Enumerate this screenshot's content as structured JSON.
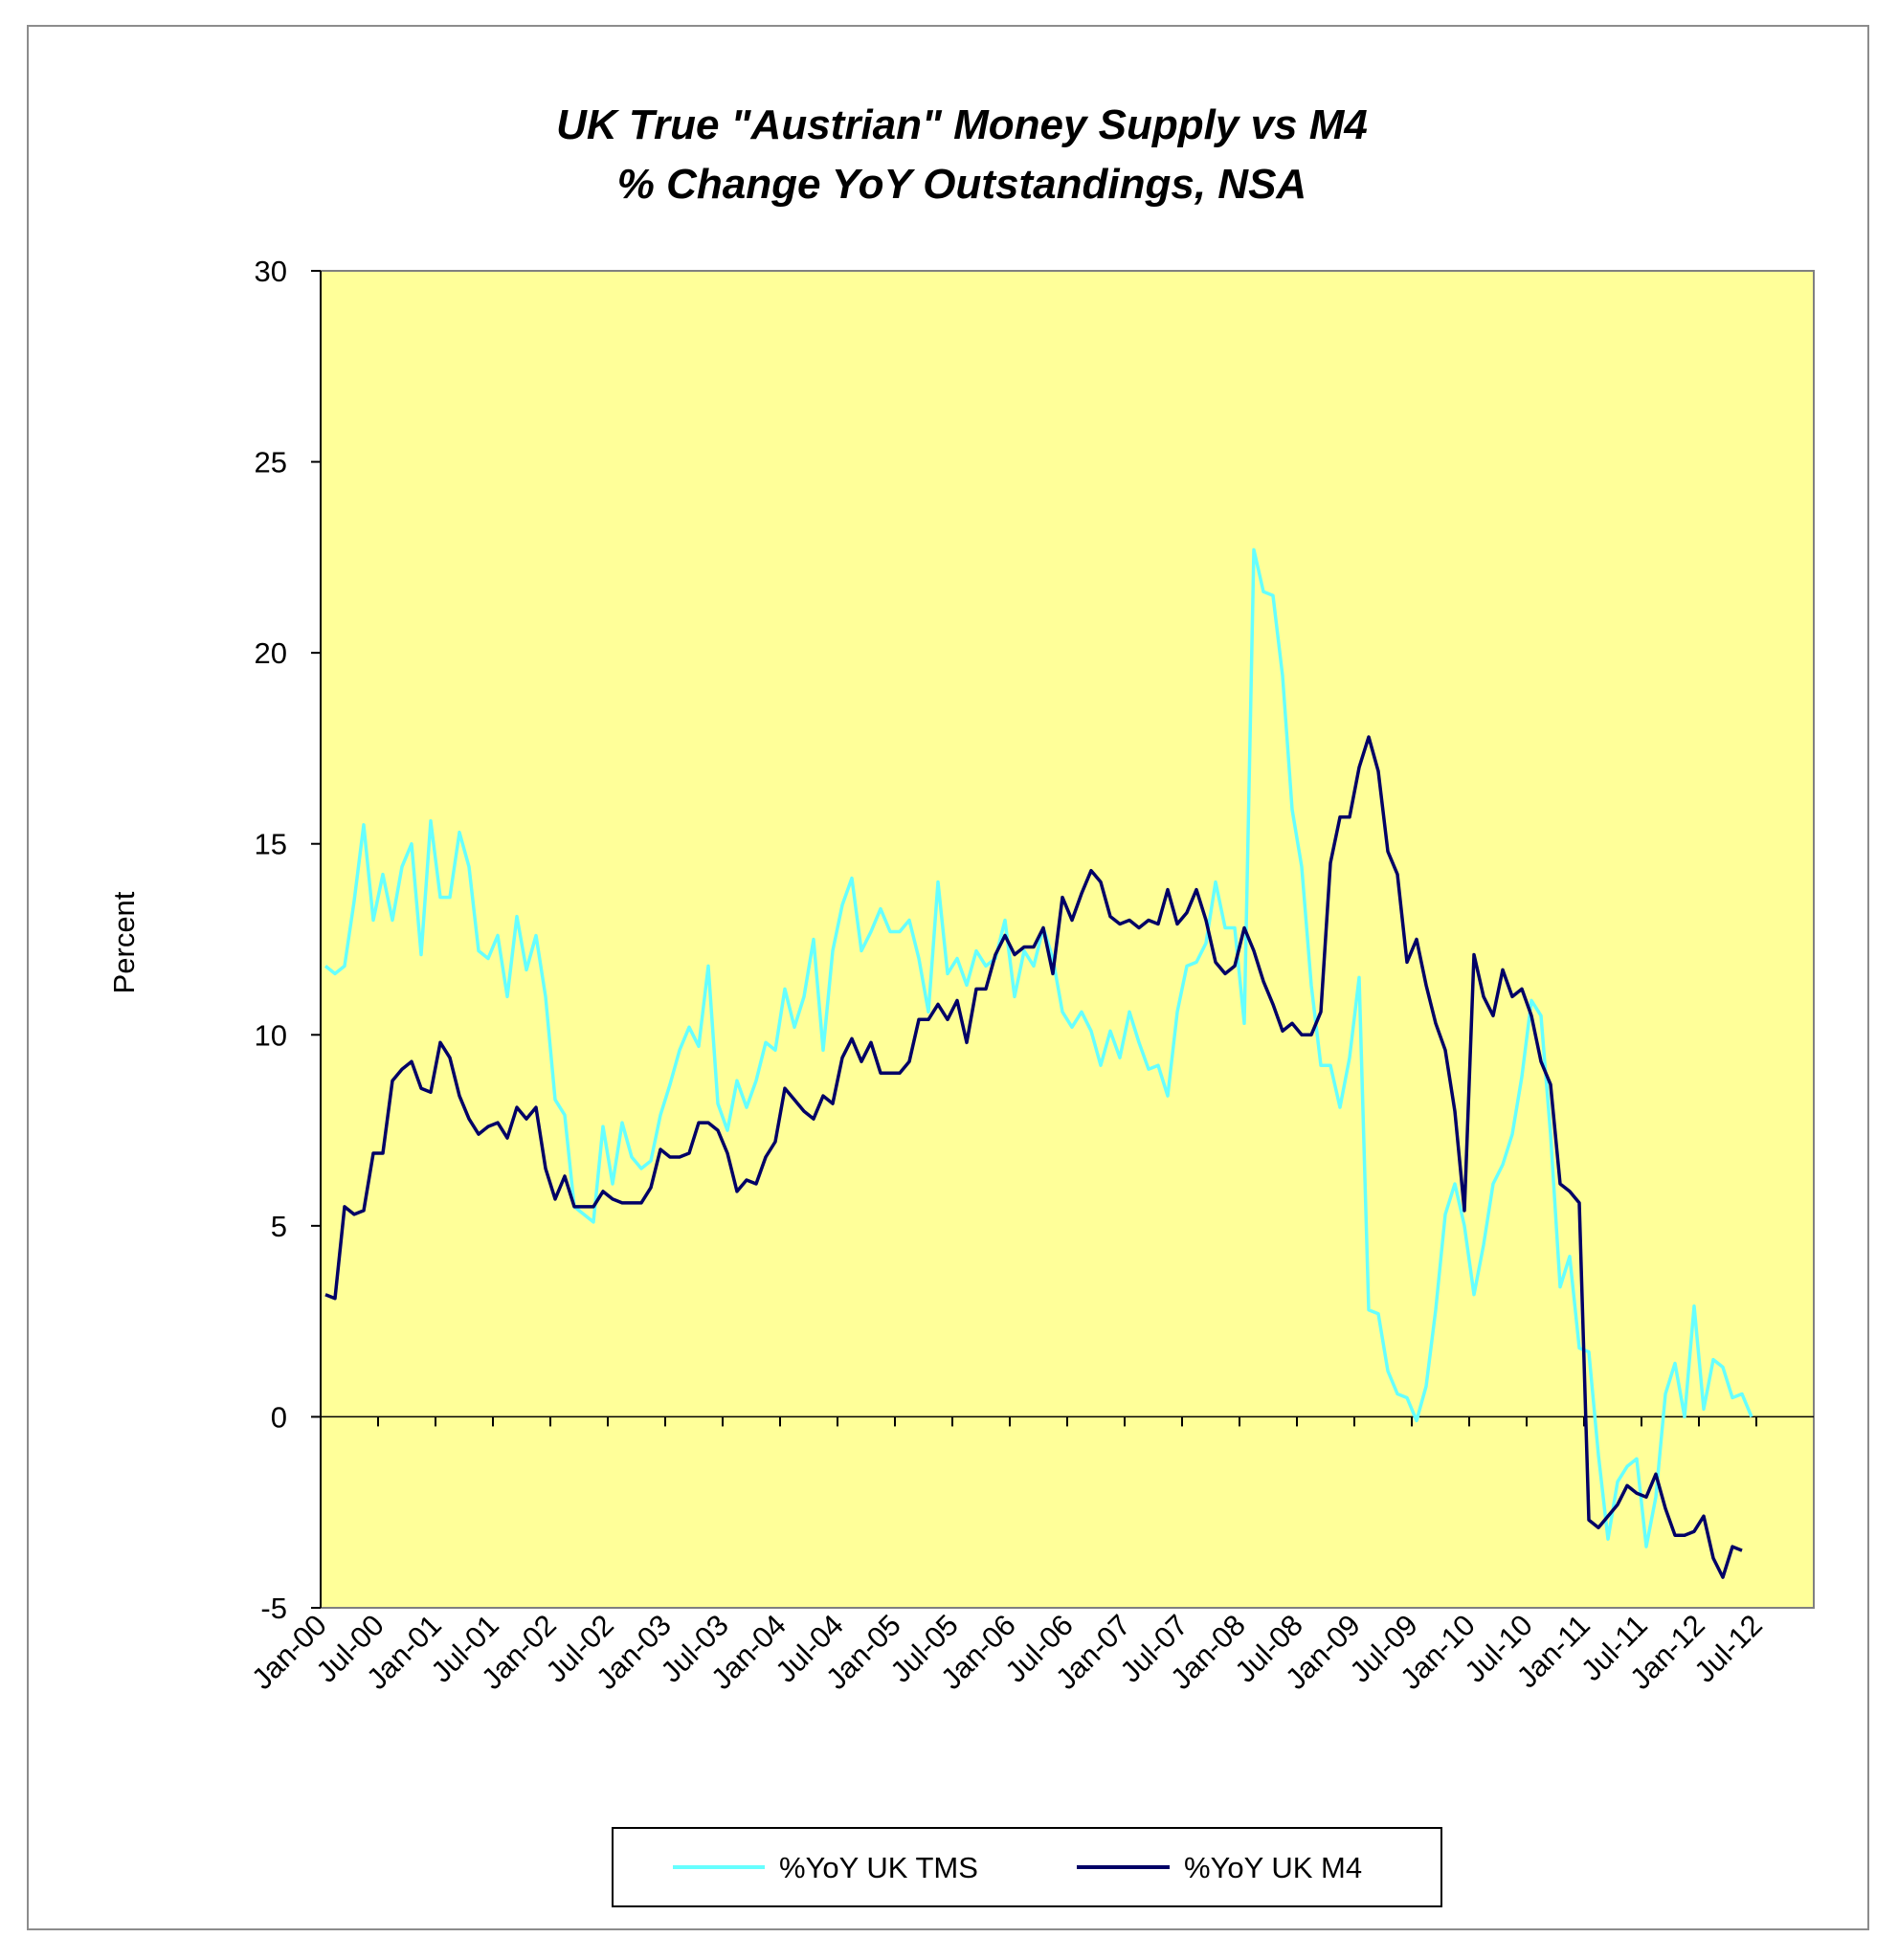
{
  "chart_data": {
    "type": "line",
    "title": "UK True \"Austrian\" Money Supply vs M4",
    "subtitle": "% Change YoY Outstandings, NSA",
    "ylabel": "Percent",
    "xlabel": "",
    "ylim": [
      -5,
      30
    ],
    "yticks": [
      "30",
      "25",
      "20",
      "15",
      "10",
      "5",
      "0",
      "-5"
    ],
    "x_tick_labels": [
      "Jan-00",
      "Jul-00",
      "Jan-01",
      "Jul-01",
      "Jan-02",
      "Jul-02",
      "Jan-03",
      "Jul-03",
      "Jan-04",
      "Jul-04",
      "Jan-05",
      "Jul-05",
      "Jan-06",
      "Jul-06",
      "Jan-07",
      "Jul-07",
      "Jan-08",
      "Jul-08",
      "Jan-09",
      "Jul-09",
      "Jan-10",
      "Jul-10",
      "Jan-11",
      "Jul-11",
      "Jan-12",
      "Jul-12"
    ],
    "plot_background": "#FFFF99",
    "grid": false,
    "legend_position": "bottom",
    "x_start": "Jan-00",
    "series": [
      {
        "name": "%YoY UK TMS",
        "color": "#66FFFF",
        "values": [
          11.8,
          11.6,
          11.8,
          13.5,
          15.5,
          13.0,
          14.2,
          13.0,
          14.4,
          15.0,
          12.1,
          15.6,
          13.6,
          13.6,
          15.3,
          14.4,
          12.2,
          12.0,
          12.6,
          11.0,
          13.1,
          11.7,
          12.6,
          11.0,
          8.3,
          7.9,
          5.5,
          5.3,
          5.1,
          7.6,
          6.1,
          7.7,
          6.8,
          6.5,
          6.7,
          7.9,
          8.7,
          9.6,
          10.2,
          9.7,
          11.8,
          8.2,
          7.5,
          8.8,
          8.1,
          8.8,
          9.8,
          9.6,
          11.2,
          10.2,
          11.0,
          12.5,
          9.6,
          12.2,
          13.4,
          14.1,
          12.2,
          12.7,
          13.3,
          12.7,
          12.7,
          13.0,
          12.0,
          10.6,
          14.0,
          11.6,
          12.0,
          11.3,
          12.2,
          11.8,
          12.0,
          13.0,
          11.0,
          12.2,
          11.8,
          12.8,
          12.0,
          10.6,
          10.2,
          10.6,
          10.1,
          9.2,
          10.1,
          9.4,
          10.6,
          9.8,
          9.1,
          9.2,
          8.4,
          10.6,
          11.8,
          11.9,
          12.4,
          14.0,
          12.8,
          12.8,
          10.3,
          22.7,
          21.6,
          21.5,
          19.4,
          15.9,
          14.4,
          11.3,
          9.2,
          9.2,
          8.1,
          9.4,
          11.5,
          2.8,
          2.7,
          1.2,
          0.6,
          0.5,
          -0.1,
          0.8,
          2.8,
          5.3,
          6.1,
          5.0,
          3.2,
          4.5,
          6.1,
          6.6,
          7.4,
          8.9,
          10.9,
          10.5,
          7.4,
          3.4,
          4.2,
          1.8,
          1.7,
          -1.0,
          -3.2,
          -1.7,
          -1.3,
          -1.1,
          -3.4,
          -2.1,
          0.6,
          1.4,
          0.0,
          2.9,
          0.2,
          1.5,
          1.3,
          0.5,
          0.6,
          0.0
        ]
      },
      {
        "name": "%YoY UK M4",
        "color": "#000066",
        "values": [
          3.2,
          3.1,
          5.5,
          5.3,
          5.4,
          6.9,
          6.9,
          8.8,
          9.1,
          9.3,
          8.6,
          8.5,
          9.8,
          9.4,
          8.4,
          7.8,
          7.4,
          7.6,
          7.7,
          7.3,
          8.1,
          7.8,
          8.1,
          6.5,
          5.7,
          6.3,
          5.5,
          5.5,
          5.5,
          5.9,
          5.7,
          5.6,
          5.6,
          5.6,
          6.0,
          7.0,
          6.8,
          6.8,
          6.9,
          7.7,
          7.7,
          7.5,
          6.9,
          5.9,
          6.2,
          6.1,
          6.8,
          7.2,
          8.6,
          8.3,
          8.0,
          7.8,
          8.4,
          8.2,
          9.4,
          9.9,
          9.3,
          9.8,
          9.0,
          9.0,
          9.0,
          9.3,
          10.4,
          10.4,
          10.8,
          10.4,
          10.9,
          9.8,
          11.2,
          11.2,
          12.1,
          12.6,
          12.1,
          12.3,
          12.3,
          12.8,
          11.6,
          13.6,
          13.0,
          13.7,
          14.3,
          14.0,
          13.1,
          12.9,
          13.0,
          12.8,
          13.0,
          12.9,
          13.8,
          12.9,
          13.2,
          13.8,
          13.0,
          11.9,
          11.6,
          11.8,
          12.8,
          12.2,
          11.4,
          10.8,
          10.1,
          10.3,
          10.0,
          10.0,
          10.6,
          14.5,
          15.7,
          15.7,
          17.0,
          17.8,
          16.9,
          14.8,
          14.2,
          11.9,
          12.5,
          11.3,
          10.3,
          9.6,
          8.0,
          5.4,
          12.1,
          11.0,
          10.5,
          11.7,
          11.0,
          11.2,
          10.5,
          9.3,
          8.7,
          6.1,
          5.9,
          5.6,
          -2.7,
          -2.9,
          -2.6,
          -2.3,
          -1.8,
          -2.0,
          -2.1,
          -1.5,
          -2.4,
          -3.1,
          -3.1,
          -3.0,
          -2.6,
          -3.7,
          -4.2,
          -3.4,
          -3.5
        ]
      }
    ]
  }
}
